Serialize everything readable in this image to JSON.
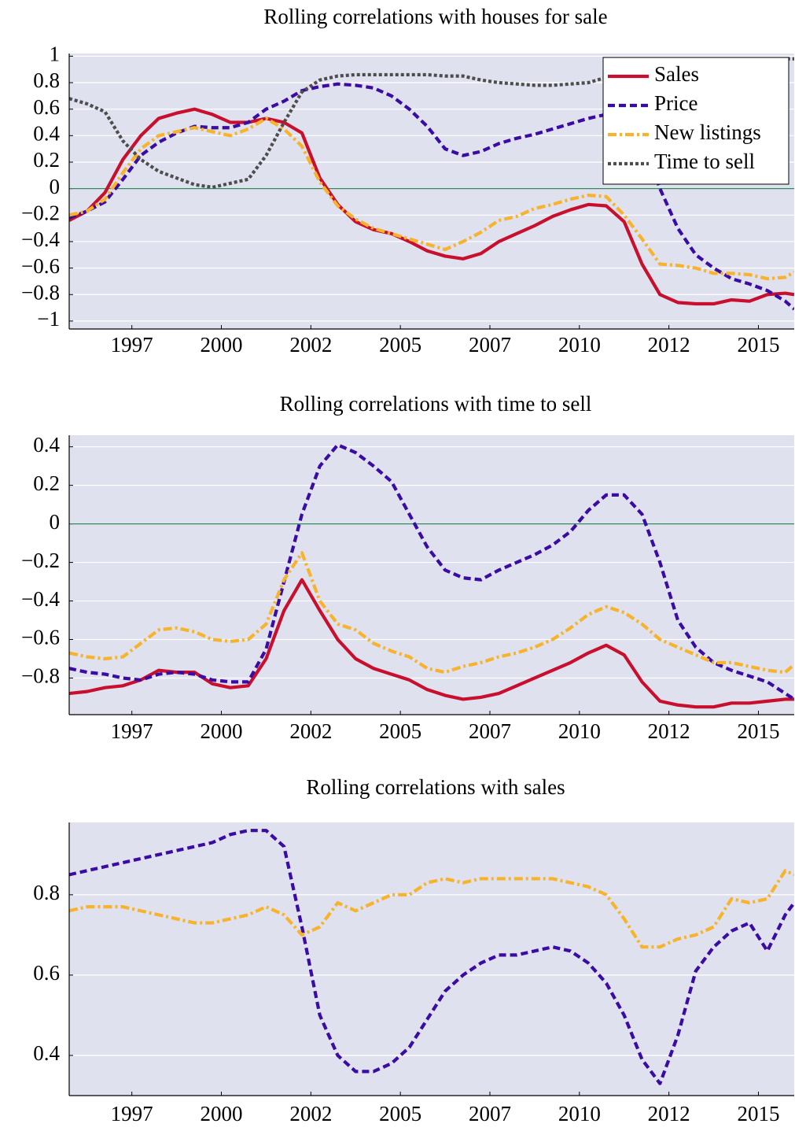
{
  "chart_data": [
    {
      "type": "line",
      "title": "Rolling correlations with houses for sale",
      "x": [
        1995.75,
        1996.25,
        1996.75,
        1997.25,
        1997.75,
        1998.25,
        1998.75,
        1999.25,
        1999.75,
        2000.25,
        2000.75,
        2001.25,
        2001.75,
        2002.25,
        2002.75,
        2003.25,
        2003.75,
        2004.25,
        2004.75,
        2005.25,
        2005.75,
        2006.25,
        2006.75,
        2007.25,
        2007.75,
        2008.25,
        2008.75,
        2009.25,
        2009.75,
        2010.25,
        2010.75,
        2011.25,
        2011.75,
        2012.25,
        2012.75,
        2013.25,
        2013.75,
        2014.25,
        2014.75,
        2015.25,
        2015.75,
        2016
      ],
      "series": [
        {
          "name": "Sales",
          "color": "#c8102e",
          "style": "solid",
          "values": [
            -0.24,
            -0.17,
            -0.03,
            0.22,
            0.4,
            0.53,
            0.57,
            0.6,
            0.56,
            0.5,
            0.5,
            0.53,
            0.5,
            0.42,
            0.08,
            -0.12,
            -0.25,
            -0.31,
            -0.34,
            -0.4,
            -0.47,
            -0.51,
            -0.53,
            -0.49,
            -0.4,
            -0.34,
            -0.28,
            -0.21,
            -0.16,
            -0.12,
            -0.13,
            -0.25,
            -0.57,
            -0.8,
            -0.86,
            -0.87,
            -0.87,
            -0.84,
            -0.85,
            -0.8,
            -0.79,
            -0.8
          ]
        },
        {
          "name": "Price",
          "color": "#3a0ca3",
          "style": "dashed",
          "values": [
            -0.22,
            -0.17,
            -0.1,
            0.07,
            0.25,
            0.35,
            0.42,
            0.47,
            0.46,
            0.46,
            0.5,
            0.6,
            0.66,
            0.74,
            0.77,
            0.79,
            0.78,
            0.76,
            0.7,
            0.6,
            0.47,
            0.3,
            0.25,
            0.28,
            0.34,
            0.38,
            0.41,
            0.45,
            0.49,
            0.53,
            0.56,
            0.57,
            0.4,
            0.0,
            -0.3,
            -0.5,
            -0.6,
            -0.68,
            -0.72,
            -0.77,
            -0.85,
            -0.91
          ]
        },
        {
          "name": "New listings",
          "color": "#f7b32b",
          "style": "dashdot",
          "values": [
            -0.2,
            -0.17,
            -0.08,
            0.12,
            0.3,
            0.4,
            0.43,
            0.46,
            0.43,
            0.4,
            0.45,
            0.53,
            0.45,
            0.32,
            0.05,
            -0.13,
            -0.23,
            -0.3,
            -0.34,
            -0.38,
            -0.42,
            -0.46,
            -0.4,
            -0.33,
            -0.24,
            -0.21,
            -0.15,
            -0.12,
            -0.08,
            -0.05,
            -0.06,
            -0.2,
            -0.38,
            -0.57,
            -0.58,
            -0.6,
            -0.64,
            -0.64,
            -0.65,
            -0.68,
            -0.67,
            -0.63
          ]
        },
        {
          "name": "Time to sell",
          "color": "#4d4d4d",
          "style": "dotted",
          "values": [
            0.68,
            0.64,
            0.58,
            0.36,
            0.22,
            0.13,
            0.08,
            0.03,
            0.01,
            0.04,
            0.07,
            0.25,
            0.5,
            0.73,
            0.82,
            0.85,
            0.86,
            0.86,
            0.86,
            0.86,
            0.86,
            0.85,
            0.85,
            0.82,
            0.8,
            0.79,
            0.78,
            0.78,
            0.79,
            0.8,
            0.84,
            0.9,
            0.95,
            0.97,
            0.98,
            0.98,
            0.98,
            0.98,
            0.98,
            0.98,
            0.98,
            0.98
          ]
        }
      ],
      "xlim": [
        1995.75,
        2016
      ],
      "xticks": [
        {
          "value": 1997.5,
          "label": "1997"
        },
        2000,
        {
          "value": 2002.5,
          "label": "2002"
        },
        2005,
        {
          "value": 2007.5,
          "label": "2007"
        },
        2010,
        {
          "value": 2012.5,
          "label": "2012"
        },
        2015
      ],
      "ylim": [
        -1.06,
        1.02
      ],
      "yticks": [
        {
          "value": -1,
          "label": "−1"
        },
        {
          "value": -0.8,
          "label": "−0.8"
        },
        {
          "value": -0.6,
          "label": "−0.6"
        },
        {
          "value": -0.4,
          "label": "−0.4"
        },
        {
          "value": -0.2,
          "label": "−0.2"
        },
        0,
        0.2,
        0.4,
        0.6,
        0.8,
        1
      ],
      "grid": true,
      "hline": 0,
      "hline_color": "#2e8b57",
      "legend": "upper right"
    },
    {
      "type": "line",
      "title": "Rolling correlations with time to sell",
      "x": [
        1995.75,
        1996.25,
        1996.75,
        1997.25,
        1997.75,
        1998.25,
        1998.75,
        1999.25,
        1999.75,
        2000.25,
        2000.75,
        2001.25,
        2001.75,
        2002.25,
        2002.75,
        2003.25,
        2003.75,
        2004.25,
        2004.75,
        2005.25,
        2005.75,
        2006.25,
        2006.75,
        2007.25,
        2007.75,
        2008.25,
        2008.75,
        2009.25,
        2009.75,
        2010.25,
        2010.75,
        2011.25,
        2011.75,
        2012.25,
        2012.75,
        2013.25,
        2013.75,
        2014.25,
        2014.75,
        2015.25,
        2015.75,
        2016
      ],
      "series": [
        {
          "color": "#c8102e",
          "style": "solid",
          "values": [
            -0.88,
            -0.87,
            -0.85,
            -0.84,
            -0.81,
            -0.76,
            -0.77,
            -0.77,
            -0.83,
            -0.85,
            -0.84,
            -0.7,
            -0.45,
            -0.29,
            -0.45,
            -0.6,
            -0.7,
            -0.75,
            -0.78,
            -0.81,
            -0.86,
            -0.89,
            -0.91,
            -0.9,
            -0.88,
            -0.84,
            -0.8,
            -0.76,
            -0.72,
            -0.67,
            -0.63,
            -0.68,
            -0.82,
            -0.92,
            -0.94,
            -0.95,
            -0.95,
            -0.93,
            -0.93,
            -0.92,
            -0.91,
            -0.91
          ]
        },
        {
          "color": "#3a0ca3",
          "style": "dashed",
          "values": [
            -0.75,
            -0.77,
            -0.78,
            -0.8,
            -0.81,
            -0.78,
            -0.77,
            -0.78,
            -0.81,
            -0.82,
            -0.82,
            -0.65,
            -0.3,
            0.05,
            0.3,
            0.41,
            0.37,
            0.3,
            0.22,
            0.05,
            -0.12,
            -0.24,
            -0.28,
            -0.29,
            -0.24,
            -0.2,
            -0.16,
            -0.11,
            -0.04,
            0.07,
            0.15,
            0.15,
            0.05,
            -0.2,
            -0.5,
            -0.64,
            -0.72,
            -0.76,
            -0.79,
            -0.82,
            -0.88,
            -0.91
          ]
        },
        {
          "color": "#f7b32b",
          "style": "dashdot",
          "values": [
            -0.67,
            -0.69,
            -0.7,
            -0.69,
            -0.62,
            -0.55,
            -0.54,
            -0.56,
            -0.6,
            -0.61,
            -0.6,
            -0.52,
            -0.29,
            -0.15,
            -0.4,
            -0.52,
            -0.55,
            -0.62,
            -0.66,
            -0.69,
            -0.75,
            -0.77,
            -0.74,
            -0.72,
            -0.69,
            -0.67,
            -0.64,
            -0.6,
            -0.54,
            -0.47,
            -0.43,
            -0.46,
            -0.52,
            -0.6,
            -0.64,
            -0.68,
            -0.72,
            -0.72,
            -0.74,
            -0.76,
            -0.77,
            -0.73
          ]
        }
      ],
      "xlim": [
        1995.75,
        2016
      ],
      "xticks": [
        {
          "value": 1997.5,
          "label": "1997"
        },
        2000,
        {
          "value": 2002.5,
          "label": "2002"
        },
        2005,
        {
          "value": 2007.5,
          "label": "2007"
        },
        2010,
        {
          "value": 2012.5,
          "label": "2012"
        },
        2015
      ],
      "ylim": [
        -0.99,
        0.46
      ],
      "yticks": [
        {
          "value": -0.8,
          "label": "−0.8"
        },
        {
          "value": -0.6,
          "label": "−0.6"
        },
        {
          "value": -0.4,
          "label": "−0.4"
        },
        {
          "value": -0.2,
          "label": "−0.2"
        },
        0,
        0.2,
        0.4
      ],
      "grid": true,
      "hline": 0,
      "hline_color": "#2e8b57"
    },
    {
      "type": "line",
      "title": "Rolling correlations with sales",
      "x": [
        1995.75,
        1996.25,
        1996.75,
        1997.25,
        1997.75,
        1998.25,
        1998.75,
        1999.25,
        1999.75,
        2000.25,
        2000.75,
        2001.25,
        2001.75,
        2002.25,
        2002.75,
        2003.25,
        2003.75,
        2004.25,
        2004.75,
        2005.25,
        2005.75,
        2006.25,
        2006.75,
        2007.25,
        2007.75,
        2008.25,
        2008.75,
        2009.25,
        2009.75,
        2010.25,
        2010.75,
        2011.25,
        2011.75,
        2012.25,
        2012.75,
        2013.25,
        2013.75,
        2014.25,
        2014.75,
        2015.25,
        2015.75,
        2016
      ],
      "series": [
        {
          "color": "#3a0ca3",
          "style": "dashed",
          "values": [
            0.85,
            0.86,
            0.87,
            0.88,
            0.89,
            0.9,
            0.91,
            0.92,
            0.93,
            0.95,
            0.96,
            0.96,
            0.92,
            0.72,
            0.5,
            0.4,
            0.36,
            0.36,
            0.38,
            0.42,
            0.49,
            0.56,
            0.6,
            0.63,
            0.65,
            0.65,
            0.66,
            0.67,
            0.66,
            0.63,
            0.58,
            0.5,
            0.39,
            0.33,
            0.45,
            0.61,
            0.67,
            0.71,
            0.73,
            0.66,
            0.75,
            0.78
          ]
        },
        {
          "color": "#f7b32b",
          "style": "dashdot",
          "values": [
            0.76,
            0.77,
            0.77,
            0.77,
            0.76,
            0.75,
            0.74,
            0.73,
            0.73,
            0.74,
            0.75,
            0.77,
            0.75,
            0.7,
            0.72,
            0.78,
            0.76,
            0.78,
            0.8,
            0.8,
            0.83,
            0.84,
            0.83,
            0.84,
            0.84,
            0.84,
            0.84,
            0.84,
            0.83,
            0.82,
            0.8,
            0.74,
            0.67,
            0.67,
            0.69,
            0.7,
            0.72,
            0.79,
            0.78,
            0.79,
            0.86,
            0.85
          ]
        }
      ],
      "xlim": [
        1995.75,
        2016
      ],
      "xticks": [
        {
          "value": 1997.5,
          "label": "1997"
        },
        2000,
        {
          "value": 2002.5,
          "label": "2002"
        },
        2005,
        {
          "value": 2007.5,
          "label": "2007"
        },
        2010,
        {
          "value": 2012.5,
          "label": "2012"
        },
        2015
      ],
      "ylim": [
        0.3,
        0.98
      ],
      "yticks": [
        0.4,
        0.6,
        0.8
      ],
      "grid": true
    }
  ]
}
